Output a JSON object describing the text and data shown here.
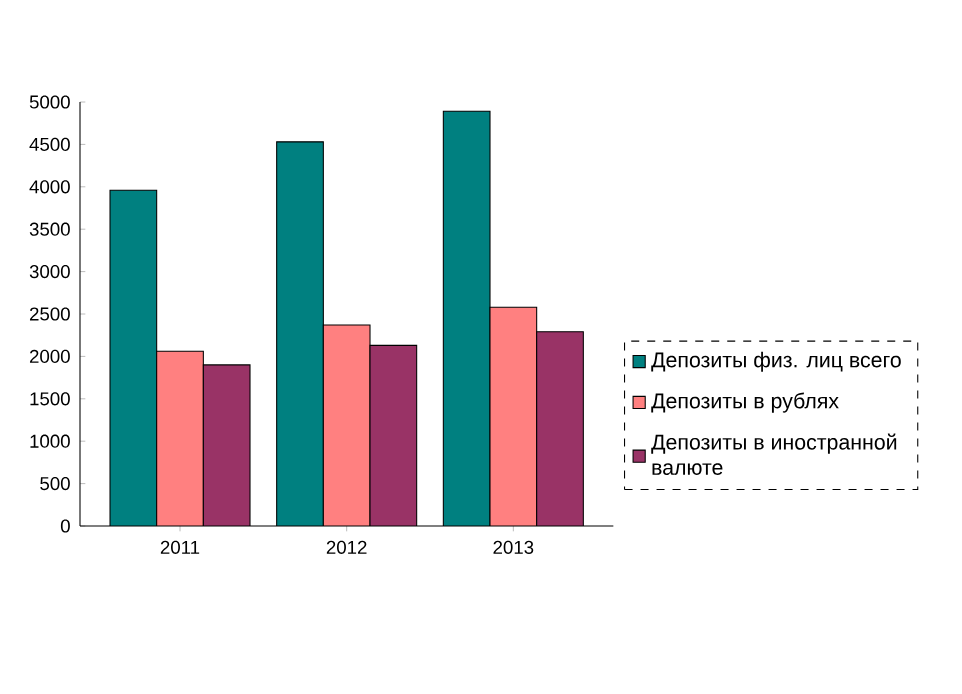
{
  "chart_data": {
    "type": "bar",
    "categories": [
      "2011",
      "2012",
      "2013"
    ],
    "series": [
      {
        "name": "Депозиты физ. лиц всего",
        "color": "#008080",
        "values": [
          3960,
          4530,
          4890
        ]
      },
      {
        "name": "Депозиты в рублях",
        "color": "#ff8080",
        "values": [
          2060,
          2370,
          2580
        ]
      },
      {
        "name": "Депозиты в иностранной валюте",
        "color": "#993366",
        "values": [
          1900,
          2130,
          2290
        ]
      }
    ],
    "ylim": [
      0,
      5000
    ],
    "yticks": [
      0,
      500,
      1000,
      1500,
      2000,
      2500,
      3000,
      3500,
      4000,
      4500,
      5000
    ],
    "legend": "right",
    "grid": false
  }
}
